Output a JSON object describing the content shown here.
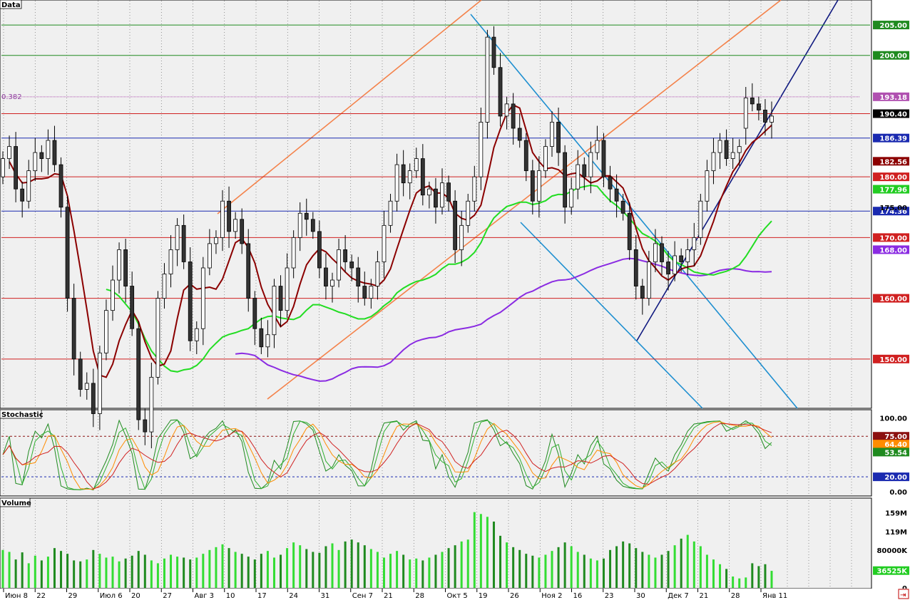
{
  "chart_data": {
    "type": "candlestick",
    "panels": {
      "price": {
        "tag": "Data",
        "ylim": [
          142,
          209
        ],
        "ticks": [
          "205.00",
          "200.00",
          "175.00",
          "170.00",
          "160.00",
          "150.00"
        ],
        "fib_label": "0.382",
        "hlines": [
          {
            "value": 205.0,
            "color": "#1f8a1f",
            "label": "205.00"
          },
          {
            "value": 200.0,
            "color": "#1f8a1f",
            "label": "200.00"
          },
          {
            "value": 193.18,
            "color": "#b050b0",
            "label": "193.18",
            "dotted": true
          },
          {
            "value": 190.4,
            "color": "#d02020",
            "label": "190.40"
          },
          {
            "value": 186.39,
            "color": "#1a2ab0",
            "label": "186.39"
          },
          {
            "value": 180.0,
            "color": "#d02020",
            "label": "180.00"
          },
          {
            "value": 174.36,
            "color": "#1a2ab0",
            "label": "174.36"
          },
          {
            "value": 170.0,
            "color": "#d02020",
            "label": "170.00"
          },
          {
            "value": 160.0,
            "color": "#d02020",
            "label": "160.00"
          },
          {
            "value": 150.0,
            "color": "#d02020",
            "label": "150.00"
          }
        ],
        "value_tags": [
          {
            "value": 190.4,
            "label": "190.40",
            "bg": "#000000",
            "fg": "#ffffff"
          },
          {
            "value": 182.56,
            "label": "182.56",
            "bg": "#8b0000",
            "fg": "#ffffff"
          },
          {
            "value": 177.96,
            "label": "177.96",
            "bg": "#22cc22",
            "fg": "#ffffff"
          },
          {
            "value": 168.0,
            "label": "168.00",
            "bg": "#8a2be2",
            "fg": "#ffffff"
          }
        ],
        "closes": [
          183,
          185,
          178,
          176,
          181,
          184,
          183,
          186,
          182,
          175,
          160,
          150,
          145,
          146,
          141,
          151,
          158,
          163,
          168,
          162,
          155,
          140,
          138,
          147,
          160,
          164,
          168,
          172,
          166,
          153,
          155,
          165,
          169,
          170,
          176,
          171,
          173,
          169,
          160,
          155,
          152,
          154,
          162,
          158,
          165,
          170,
          174,
          173,
          171,
          165,
          162,
          163,
          168,
          166,
          165,
          162,
          160,
          162,
          166,
          172,
          176,
          182,
          179,
          181,
          183,
          177,
          178,
          175,
          179,
          176,
          168,
          172,
          176,
          180,
          189,
          203,
          198,
          190,
          192,
          188,
          186,
          181,
          176,
          181,
          185,
          189,
          184,
          175,
          178,
          182,
          180,
          184,
          186,
          180,
          178,
          176,
          174,
          168,
          162,
          160,
          166,
          169,
          166,
          164,
          167,
          166,
          168,
          170,
          176,
          181,
          184,
          186,
          183,
          184,
          185,
          193,
          192,
          191,
          189,
          190
        ],
        "opens": [
          180,
          183,
          185,
          178,
          176,
          181,
          184,
          183,
          186,
          182,
          175,
          160,
          150,
          145,
          146,
          141,
          151,
          158,
          163,
          168,
          162,
          155,
          140,
          138,
          147,
          160,
          164,
          168,
          172,
          166,
          153,
          155,
          165,
          169,
          170,
          176,
          171,
          173,
          169,
          160,
          155,
          152,
          154,
          162,
          158,
          165,
          170,
          174,
          173,
          171,
          165,
          162,
          163,
          168,
          166,
          165,
          162,
          160,
          162,
          166,
          172,
          176,
          182,
          179,
          181,
          183,
          177,
          178,
          175,
          179,
          176,
          168,
          172,
          176,
          180,
          189,
          203,
          198,
          190,
          192,
          188,
          186,
          181,
          176,
          181,
          185,
          189,
          184,
          175,
          178,
          182,
          180,
          184,
          186,
          180,
          178,
          176,
          174,
          168,
          162,
          160,
          166,
          169,
          166,
          164,
          167,
          166,
          168,
          170,
          176,
          181,
          184,
          186,
          183,
          184,
          188,
          193,
          192,
          191,
          189
        ]
      },
      "stochastic": {
        "tag": "Stochastic",
        "ylim": [
          -5,
          110
        ],
        "ticks": [
          "100.00",
          "0.00"
        ],
        "levels": [
          {
            "value": 75.0,
            "label": "75.00",
            "bg": "#8b1010"
          },
          {
            "value": 20.0,
            "label": "20.00",
            "bg": "#1a2ab0"
          }
        ],
        "value_tags": [
          {
            "value": 64.4,
            "label": "64.40",
            "bg": "#ff8c00"
          },
          {
            "value": 53.54,
            "label": "53.54",
            "bg": "#1f8a1f"
          }
        ]
      },
      "volume": {
        "tag": "Volume",
        "ylim": [
          0,
          170
        ],
        "ticks": [
          "159M",
          "119M",
          "80000K",
          "0"
        ],
        "current_label": "36525K",
        "values": [
          80,
          76,
          60,
          75,
          52,
          68,
          58,
          66,
          84,
          78,
          72,
          58,
          56,
          60,
          80,
          72,
          64,
          66,
          56,
          62,
          68,
          78,
          70,
          58,
          52,
          62,
          70,
          66,
          64,
          60,
          64,
          72,
          80,
          86,
          92,
          84,
          76,
          72,
          66,
          60,
          72,
          78,
          64,
          70,
          84,
          96,
          90,
          82,
          76,
          74,
          88,
          94,
          80,
          98,
          102,
          96,
          90,
          82,
          76,
          64,
          72,
          78,
          70,
          60,
          62,
          58,
          64,
          70,
          76,
          84,
          90,
          98,
          102,
          160,
          156,
          150,
          140,
          110,
          96,
          86,
          80,
          72,
          68,
          64,
          70,
          78,
          86,
          96,
          88,
          76,
          70,
          62,
          58,
          62,
          80,
          88,
          98,
          94,
          84,
          76,
          70,
          64,
          70,
          78,
          90,
          104,
          112,
          98,
          88,
          70,
          60,
          50,
          40,
          24,
          20,
          22,
          52,
          46,
          50,
          36
        ]
      }
    },
    "x_labels": [
      "Июн 8",
      "22",
      "29",
      "Июл 6",
      "20",
      "27",
      "Авг 3",
      "10",
      "17",
      "24",
      "31",
      "Сен 7",
      "21",
      "28",
      "Окт 5",
      "19",
      "26",
      "Ноя 2",
      "16",
      "23",
      "30",
      "Дек 7",
      "21",
      "28",
      "Янв 11"
    ],
    "series": [
      {
        "name": "SMA red"
      },
      {
        "name": "SMA green"
      },
      {
        "name": "SMA purple"
      }
    ]
  }
}
